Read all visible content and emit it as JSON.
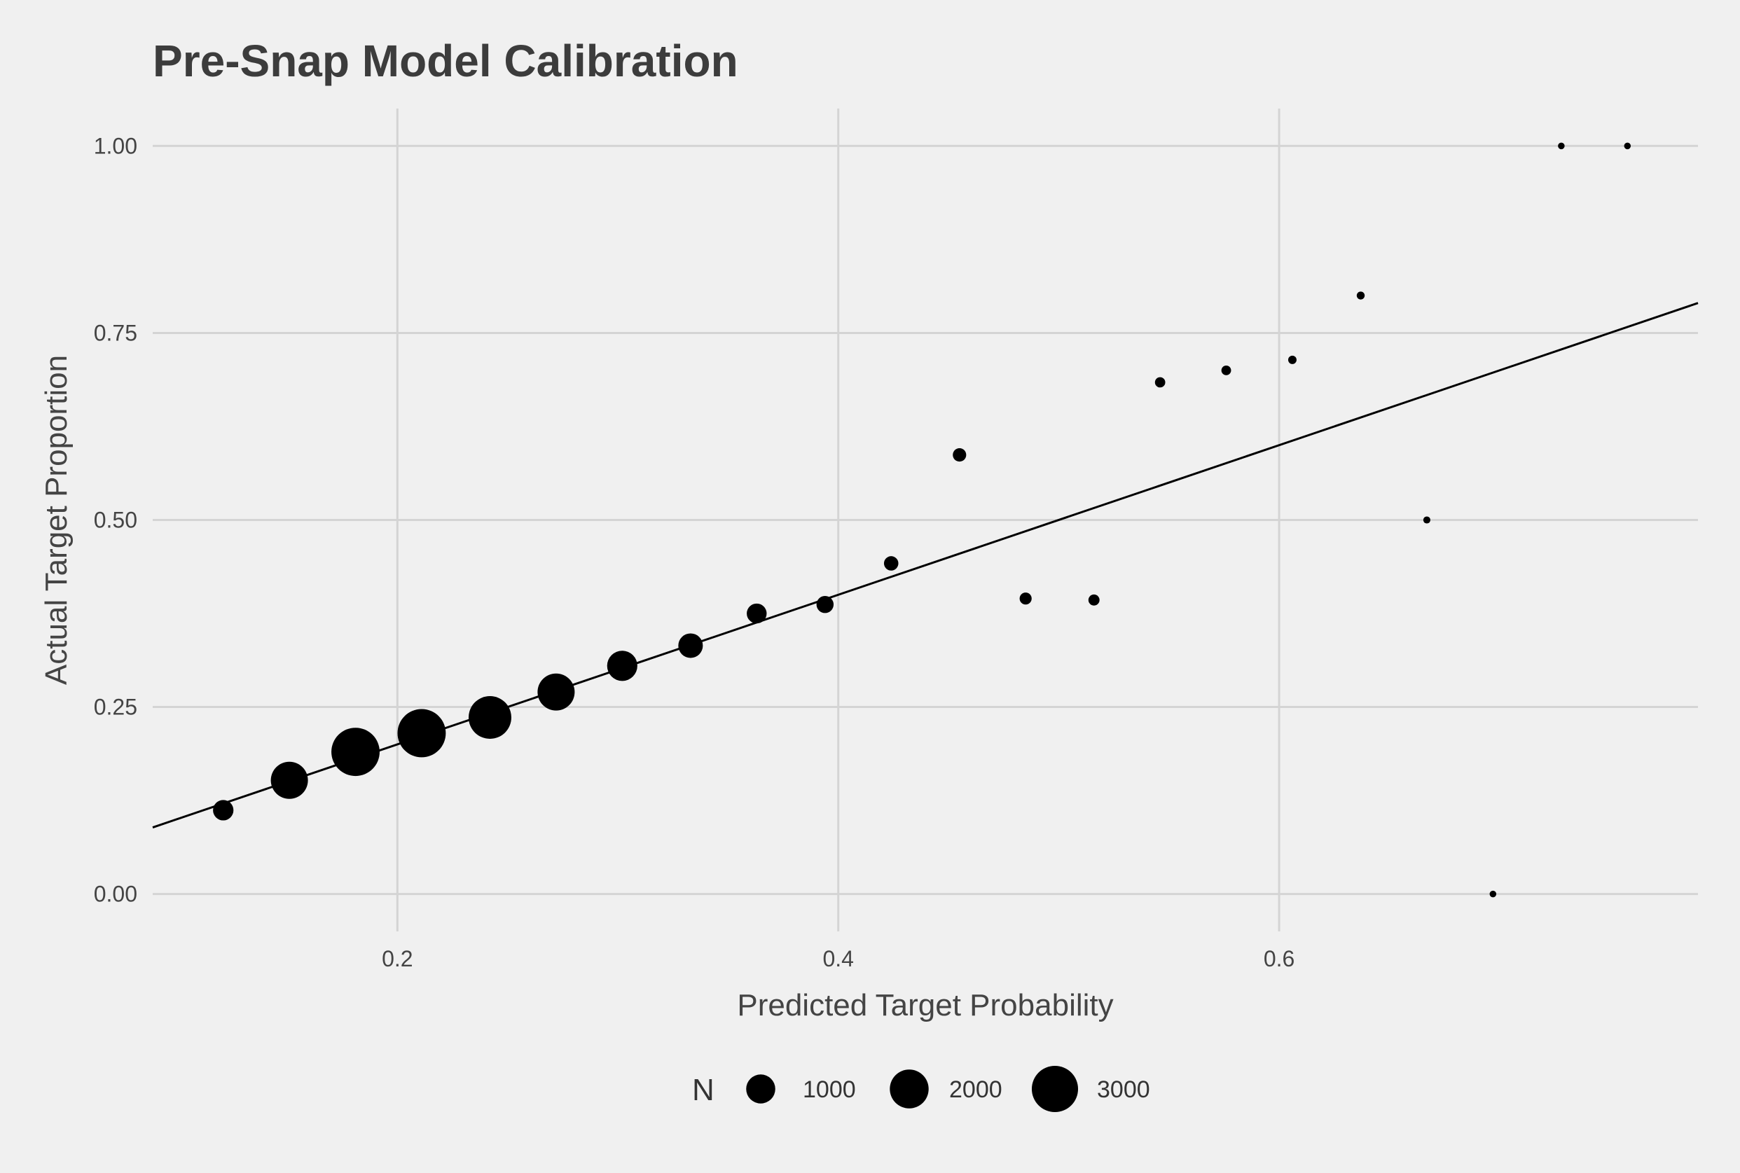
{
  "chart_data": {
    "type": "scatter",
    "title": "Pre-Snap Model Calibration",
    "xlabel": "Predicted Target Probability",
    "ylabel": "Actual Target Proportion",
    "xlim": [
      0.089,
      0.79
    ],
    "ylim": [
      -0.05,
      1.05
    ],
    "x_ticks": [
      0.2,
      0.4,
      0.6
    ],
    "x_tick_labels": [
      "0.2",
      "0.4",
      "0.6"
    ],
    "y_ticks": [
      0.0,
      0.25,
      0.5,
      0.75,
      1.0
    ],
    "y_tick_labels": [
      "0.00",
      "0.25",
      "0.50",
      "0.75",
      "1.00"
    ],
    "grid": true,
    "reference_line": {
      "slope": 1,
      "intercept": 0
    },
    "size_legend": {
      "title": "N",
      "position": "bottom",
      "entries": [
        {
          "label": "1000",
          "n": 1000
        },
        {
          "label": "2000",
          "n": 2000
        },
        {
          "label": "3000",
          "n": 3000
        }
      ]
    },
    "points": [
      {
        "x": 0.121,
        "y": 0.112,
        "n": 400
      },
      {
        "x": 0.151,
        "y": 0.152,
        "n": 1800
      },
      {
        "x": 0.181,
        "y": 0.19,
        "n": 3300
      },
      {
        "x": 0.211,
        "y": 0.215,
        "n": 3300
      },
      {
        "x": 0.242,
        "y": 0.236,
        "n": 2500
      },
      {
        "x": 0.272,
        "y": 0.27,
        "n": 1800
      },
      {
        "x": 0.302,
        "y": 0.305,
        "n": 1100
      },
      {
        "x": 0.333,
        "y": 0.332,
        "n": 650
      },
      {
        "x": 0.363,
        "y": 0.375,
        "n": 370
      },
      {
        "x": 0.394,
        "y": 0.387,
        "n": 240
      },
      {
        "x": 0.424,
        "y": 0.442,
        "n": 140
      },
      {
        "x": 0.455,
        "y": 0.587,
        "n": 110
      },
      {
        "x": 0.485,
        "y": 0.395,
        "n": 75
      },
      {
        "x": 0.516,
        "y": 0.393,
        "n": 55
      },
      {
        "x": 0.546,
        "y": 0.684,
        "n": 40
      },
      {
        "x": 0.576,
        "y": 0.7,
        "n": 30
      },
      {
        "x": 0.606,
        "y": 0.714,
        "n": 14
      },
      {
        "x": 0.637,
        "y": 0.8,
        "n": 10
      },
      {
        "x": 0.667,
        "y": 0.5,
        "n": 4
      },
      {
        "x": 0.697,
        "y": 0.0,
        "n": 2
      },
      {
        "x": 0.728,
        "y": 1.0,
        "n": 2
      },
      {
        "x": 0.758,
        "y": 1.0,
        "n": 2
      }
    ]
  }
}
